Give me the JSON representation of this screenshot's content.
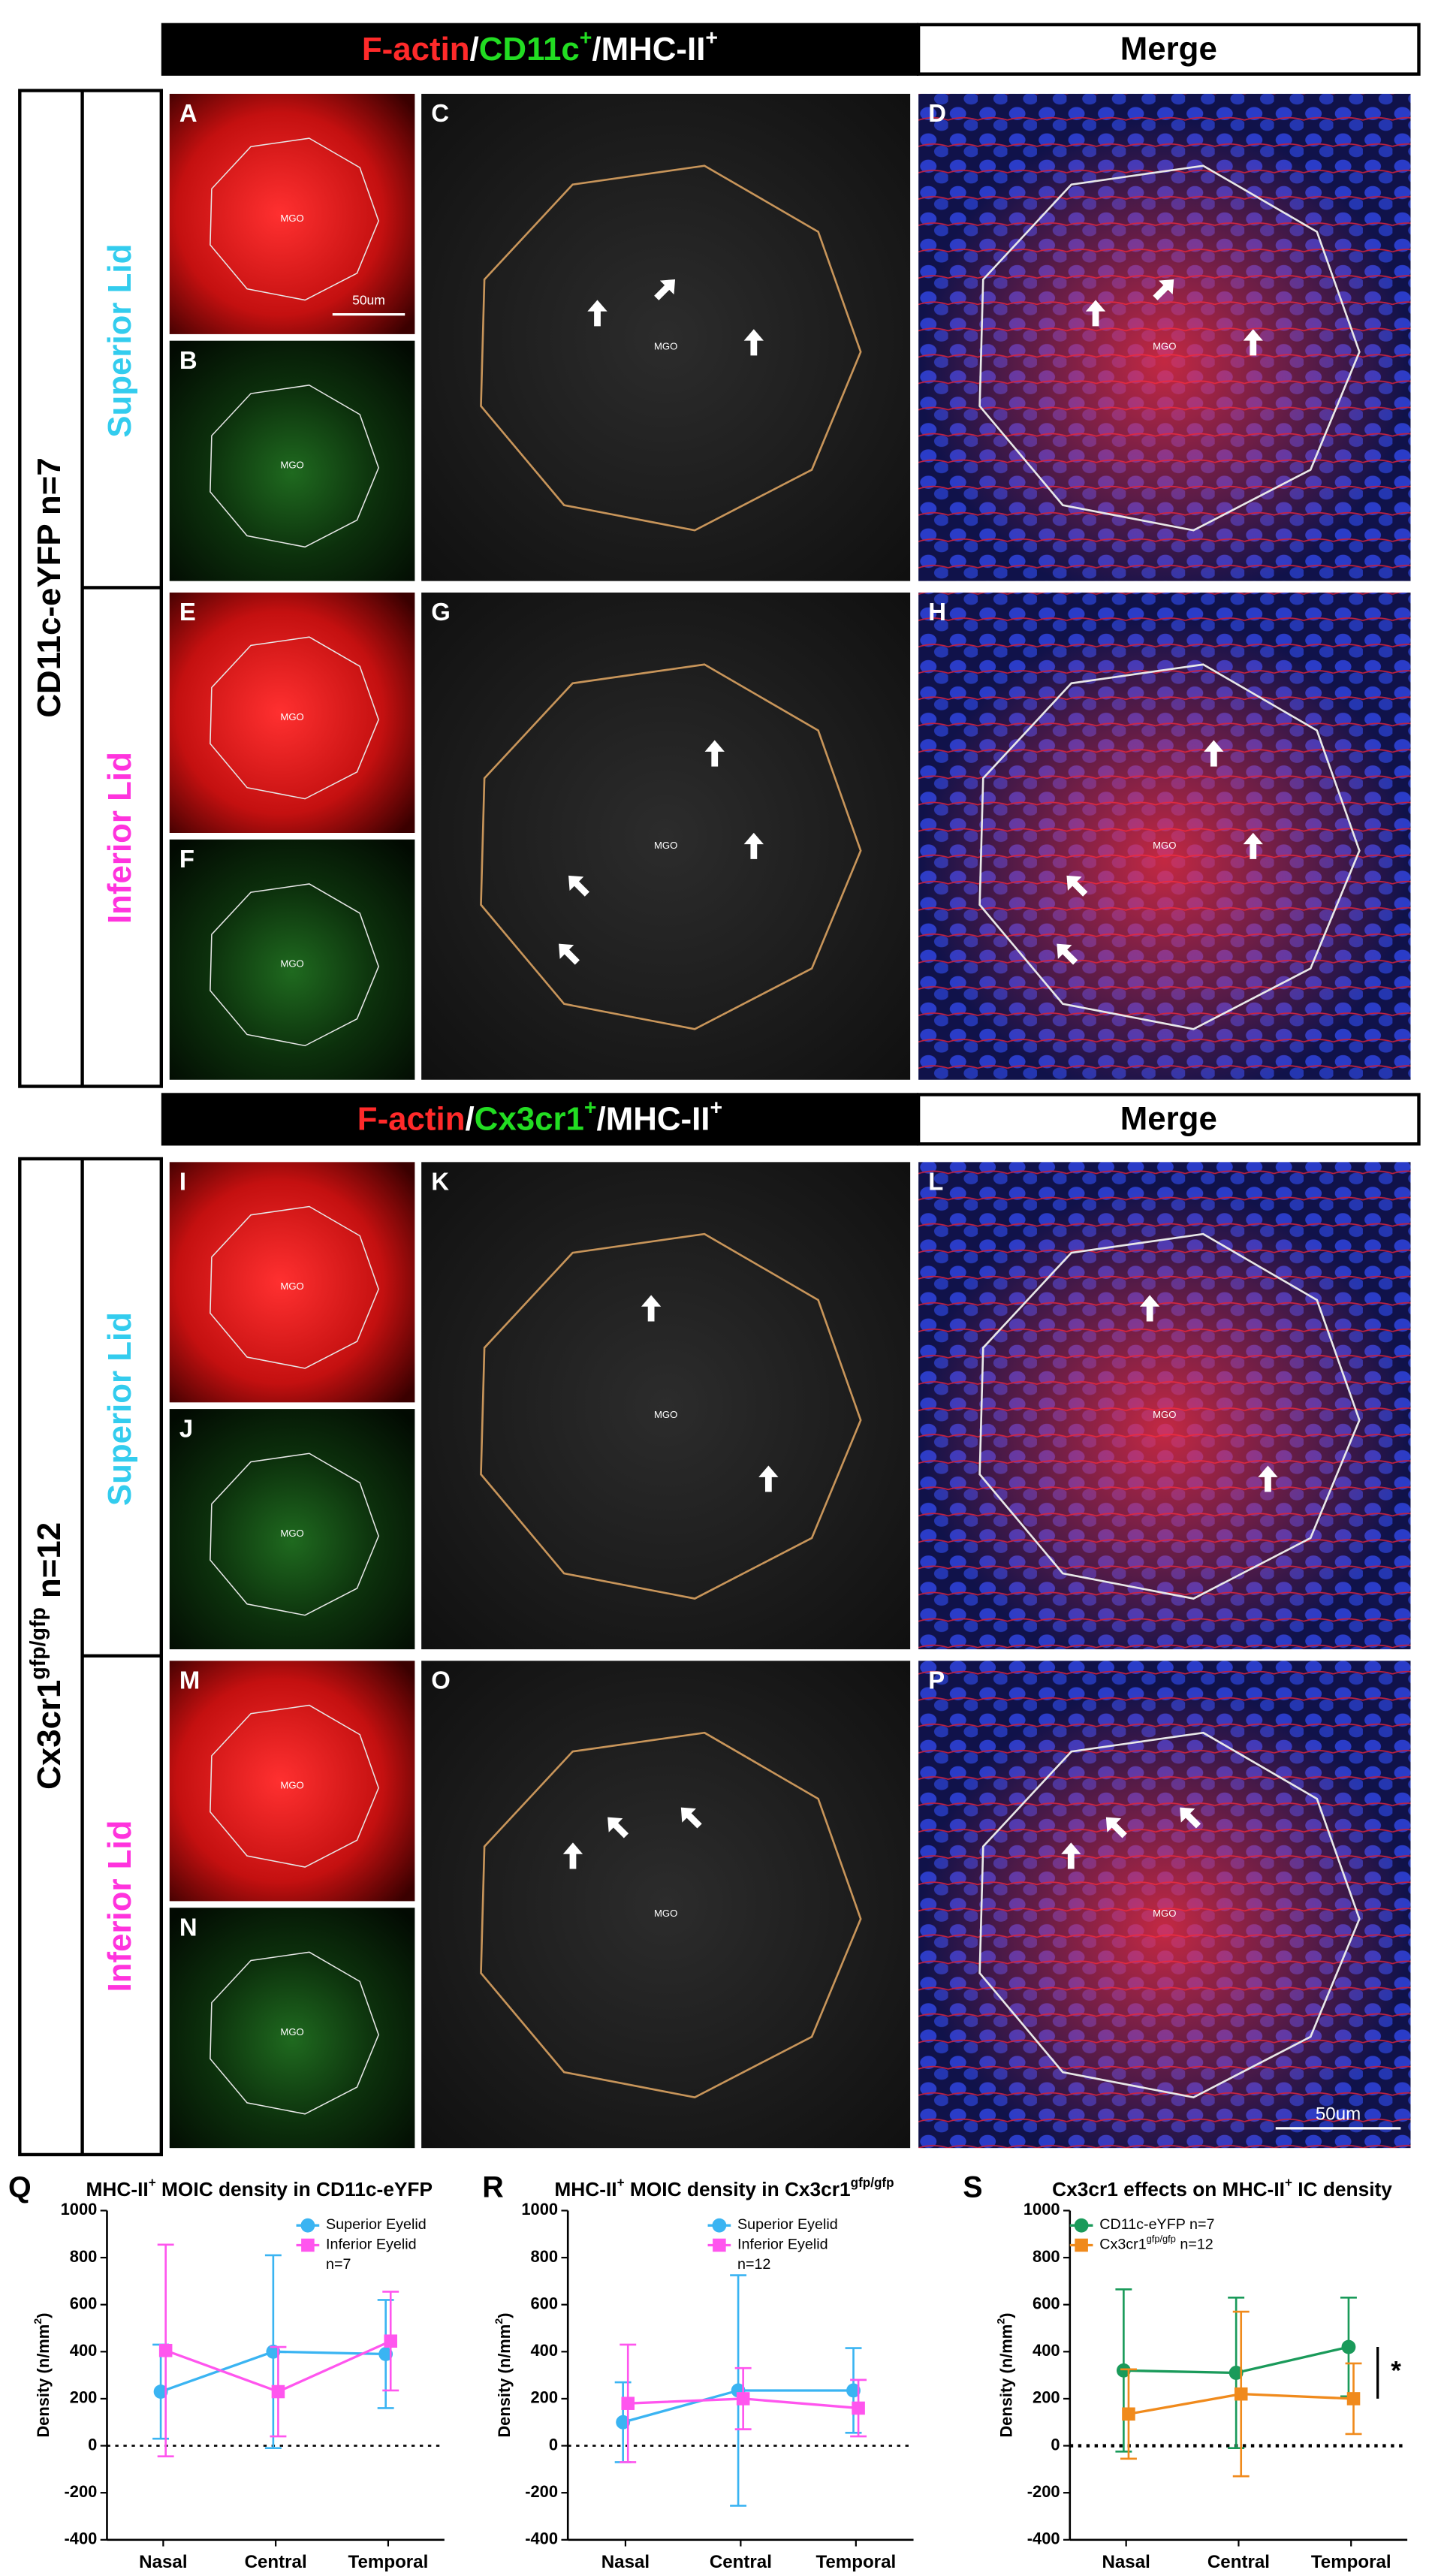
{
  "figure": {
    "blocks": [
      {
        "header": [
          {
            "text": "F-actin",
            "color": "#ff2a2a"
          },
          {
            "text": "/",
            "color": "#ffffff"
          },
          {
            "text": "CD11c",
            "color": "#22dd22"
          },
          {
            "text": "+",
            "color": "#22dd22",
            "sup": true
          },
          {
            "text": "/MHC-II",
            "color": "#ffffff"
          },
          {
            "text": "+",
            "color": "#ffffff",
            "sup": true
          }
        ],
        "merge": "Merge",
        "group": [
          {
            "text": "CD11c-eYFP n=7"
          }
        ],
        "rows": [
          {
            "label": "Superior Lid",
            "color": "#33ccee"
          },
          {
            "label": "Inferior Lid",
            "color": "#ff33dd"
          }
        ],
        "panels": [
          {
            "letter": "A",
            "label": "MGO",
            "scale_bar": "50um"
          },
          {
            "letter": "B",
            "label": "MGO"
          },
          {
            "letter": "C",
            "label": "MGO"
          },
          {
            "letter": "D",
            "label": "MGO"
          },
          {
            "letter": "E",
            "label": "MGO"
          },
          {
            "letter": "F",
            "label": "MGO"
          },
          {
            "letter": "G",
            "label": "MGO"
          },
          {
            "letter": "H",
            "label": "MGO"
          }
        ]
      },
      {
        "header": [
          {
            "text": "F-actin",
            "color": "#ff2a2a"
          },
          {
            "text": "/",
            "color": "#ffffff"
          },
          {
            "text": "Cx3cr1",
            "color": "#22dd22"
          },
          {
            "text": "+",
            "color": "#22dd22",
            "sup": true
          },
          {
            "text": "/MHC-II",
            "color": "#ffffff"
          },
          {
            "text": "+",
            "color": "#ffffff",
            "sup": true
          }
        ],
        "merge": "Merge",
        "group": [
          {
            "text": "Cx3cr1"
          },
          {
            "text": "gfp/gfp",
            "sup": true
          },
          {
            "text": " n=12"
          }
        ],
        "rows": [
          {
            "label": "Superior Lid",
            "color": "#33ccee"
          },
          {
            "label": "Inferior Lid",
            "color": "#ff33dd"
          }
        ],
        "panels": [
          {
            "letter": "I",
            "label": "MGO"
          },
          {
            "letter": "J",
            "label": "MGO"
          },
          {
            "letter": "K",
            "label": "MGO"
          },
          {
            "letter": "L",
            "label": "MGO"
          },
          {
            "letter": "M",
            "label": "MGO"
          },
          {
            "letter": "N",
            "label": "MGO"
          },
          {
            "letter": "O",
            "label": "MGO"
          },
          {
            "letter": "P",
            "label": "MGO",
            "scale_bar": "50um"
          }
        ]
      }
    ]
  },
  "chart_data": [
    {
      "type": "line",
      "label": "Q",
      "title": [
        {
          "text": "MHC-II"
        },
        {
          "text": "+",
          "sup": true
        },
        {
          "text": " MOIC density in CD11c-eYFP"
        }
      ],
      "ylabel": [
        {
          "text": "Density (n/mm"
        },
        {
          "text": "2",
          "sup": true
        },
        {
          "text": ")"
        }
      ],
      "categories": [
        "Nasal",
        "Central",
        "Temporal"
      ],
      "ylim": [
        -400,
        1000
      ],
      "yticks": [
        -400,
        -200,
        0,
        200,
        400,
        600,
        800,
        1000
      ],
      "zero_line_dashed": true,
      "series": [
        {
          "name": [
            {
              "text": "Superior Eyelid"
            }
          ],
          "color": "#3ab4f2",
          "marker": "circle",
          "values": [
            230,
            400,
            390
          ],
          "errors": [
            200,
            410,
            230
          ]
        },
        {
          "name": [
            {
              "text": "Inferior Eyelid"
            }
          ],
          "color": "#ff55ee",
          "marker": "square",
          "values": [
            405,
            230,
            445
          ],
          "errors": [
            450,
            190,
            210
          ]
        }
      ],
      "annotation": "n=7"
    },
    {
      "type": "line",
      "label": "R",
      "title": [
        {
          "text": "MHC-II"
        },
        {
          "text": "+",
          "sup": true
        },
        {
          "text": " MOIC density in Cx3cr1"
        },
        {
          "text": "gfp/gfp",
          "sup": true
        }
      ],
      "ylabel": [
        {
          "text": "Density (n/mm"
        },
        {
          "text": "2",
          "sup": true
        },
        {
          "text": ")"
        }
      ],
      "categories": [
        "Nasal",
        "Central",
        "Temporal"
      ],
      "ylim": [
        -400,
        1000
      ],
      "yticks": [
        -400,
        -200,
        0,
        200,
        400,
        600,
        800,
        1000
      ],
      "zero_line_dashed": true,
      "series": [
        {
          "name": [
            {
              "text": "Superior Eyelid"
            }
          ],
          "color": "#3ab4f2",
          "marker": "circle",
          "values": [
            100,
            235,
            235
          ],
          "errors": [
            170,
            490,
            180
          ]
        },
        {
          "name": [
            {
              "text": "Inferior Eyelid"
            }
          ],
          "color": "#ff55ee",
          "marker": "square",
          "values": [
            180,
            200,
            160
          ],
          "errors": [
            250,
            130,
            120
          ]
        }
      ],
      "annotation": "n=12"
    },
    {
      "type": "line",
      "label": "S",
      "title": [
        {
          "text": "Cx3cr1 effects on MHC-II"
        },
        {
          "text": "+",
          "sup": true
        },
        {
          "text": " IC density"
        }
      ],
      "ylabel": [
        {
          "text": "Density (n/mm"
        },
        {
          "text": "2",
          "sup": true
        },
        {
          "text": ")"
        }
      ],
      "categories": [
        "Nasal",
        "Central",
        "Temporal"
      ],
      "ylim": [
        -400,
        1000
      ],
      "yticks": [
        -400,
        -200,
        0,
        200,
        400,
        600,
        800,
        1000
      ],
      "zero_line_dashed": true,
      "series": [
        {
          "name": [
            {
              "text": "CD11c-eYFP n=7"
            }
          ],
          "color": "#1a9a5a",
          "marker": "circle",
          "values": [
            320,
            310,
            420
          ],
          "errors": [
            345,
            320,
            210
          ]
        },
        {
          "name": [
            {
              "text": "Cx3cr1"
            },
            {
              "text": "gfp/gfp",
              "sup": true
            },
            {
              "text": " n=12"
            }
          ],
          "color": "#f08a1c",
          "marker": "square",
          "values": [
            135,
            220,
            200
          ],
          "errors": [
            190,
            350,
            150
          ]
        }
      ],
      "significance": "*"
    }
  ]
}
